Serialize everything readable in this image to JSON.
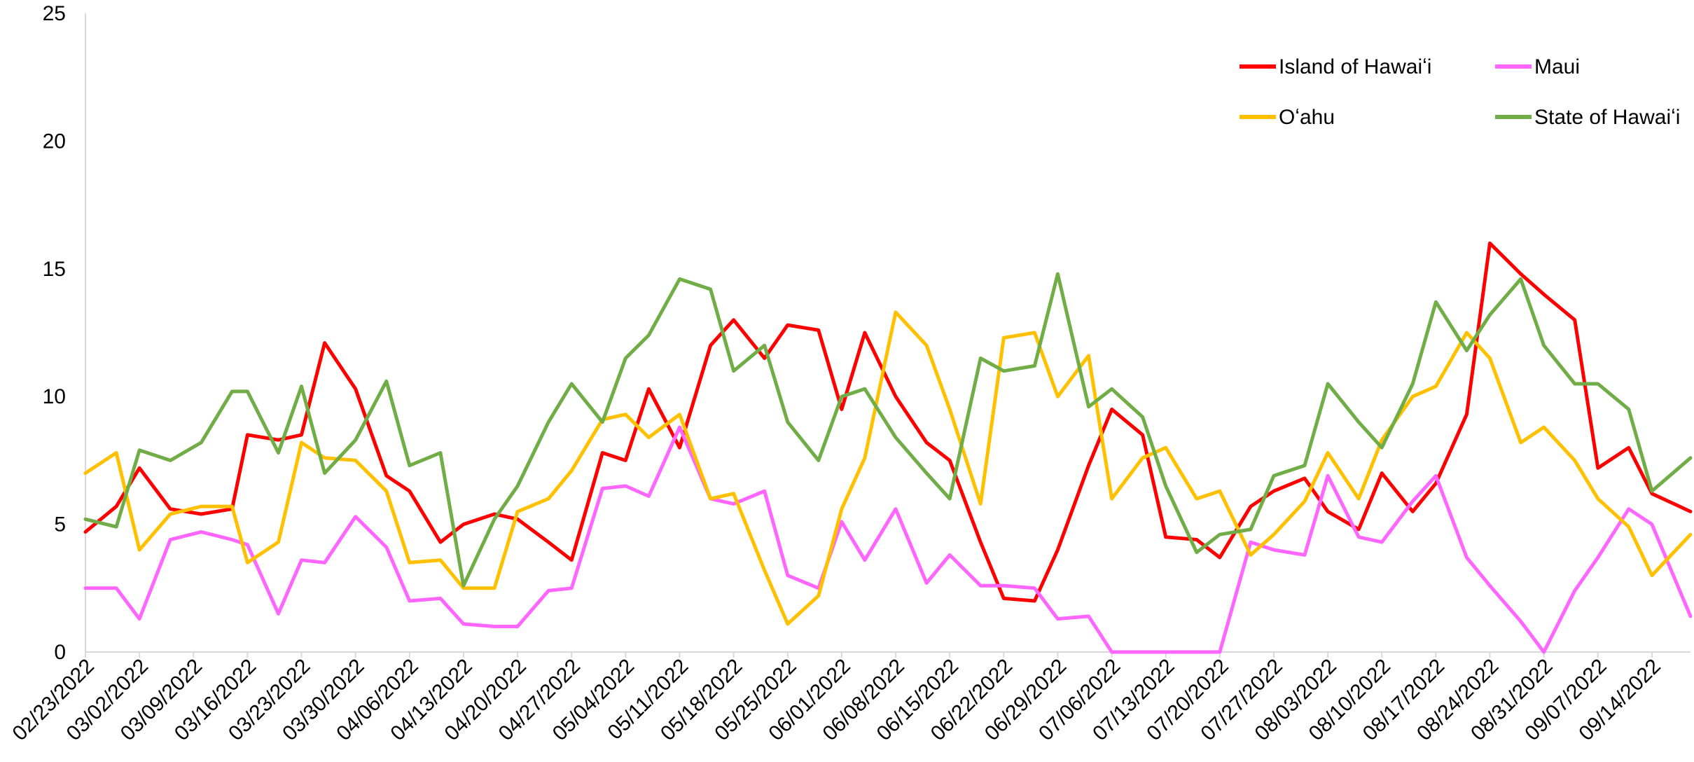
{
  "chart_data": {
    "type": "line",
    "title": "",
    "xlabel": "",
    "ylabel": "",
    "ylim": [
      0,
      25
    ],
    "yticks": [
      0,
      5,
      10,
      15,
      20,
      25
    ],
    "grid": false,
    "legend_placement": "top-right",
    "x_tick_labels": [
      "02/23/2022",
      "03/02/2022",
      "03/09/2022",
      "03/16/2022",
      "03/23/2022",
      "03/30/2022",
      "04/06/2022",
      "04/13/2022",
      "04/20/2022",
      "04/27/2022",
      "05/04/2022",
      "05/11/2022",
      "05/18/2022",
      "05/25/2022",
      "06/01/2022",
      "06/08/2022",
      "06/15/2022",
      "06/22/2022",
      "06/29/2022",
      "07/06/2022",
      "07/13/2022",
      "07/20/2022",
      "07/27/2022",
      "08/03/2022",
      "08/10/2022",
      "08/17/2022",
      "08/24/2022",
      "08/31/2022",
      "09/07/2022",
      "09/14/2022"
    ],
    "x_start": "02/23/2022",
    "x_end": "09/19/2022",
    "series": [
      {
        "name": "Island of Hawaiʻi",
        "color": "#ff0000",
        "x": [
          "02/23/2022",
          "02/27/2022",
          "03/02/2022",
          "03/06/2022",
          "03/10/2022",
          "03/14/2022",
          "03/16/2022",
          "03/20/2022",
          "03/23/2022",
          "03/26/2022",
          "03/30/2022",
          "04/03/2022",
          "04/06/2022",
          "04/10/2022",
          "04/13/2022",
          "04/17/2022",
          "04/20/2022",
          "04/24/2022",
          "04/27/2022",
          "05/01/2022",
          "05/04/2022",
          "05/07/2022",
          "05/11/2022",
          "05/15/2022",
          "05/18/2022",
          "05/22/2022",
          "05/25/2022",
          "05/29/2022",
          "06/01/2022",
          "06/04/2022",
          "06/08/2022",
          "06/12/2022",
          "06/15/2022",
          "06/19/2022",
          "06/22/2022",
          "06/26/2022",
          "06/29/2022",
          "07/03/2022",
          "07/06/2022",
          "07/10/2022",
          "07/13/2022",
          "07/17/2022",
          "07/20/2022",
          "07/24/2022",
          "07/27/2022",
          "07/31/2022",
          "08/03/2022",
          "08/07/2022",
          "08/10/2022",
          "08/14/2022",
          "08/17/2022",
          "08/21/2022",
          "08/24/2022",
          "08/28/2022",
          "08/31/2022",
          "09/04/2022",
          "09/07/2022",
          "09/11/2022",
          "09/14/2022",
          "09/19/2022"
        ],
        "values": [
          4.7,
          5.7,
          7.2,
          5.6,
          5.4,
          5.6,
          8.5,
          8.3,
          8.5,
          12.1,
          10.3,
          6.9,
          6.3,
          4.3,
          5.0,
          5.4,
          5.2,
          4.3,
          3.6,
          7.8,
          7.5,
          10.3,
          8.0,
          12.0,
          13.0,
          11.5,
          12.8,
          12.6,
          9.5,
          12.5,
          10.0,
          8.2,
          7.5,
          4.3,
          2.1,
          2.0,
          4.0,
          7.3,
          9.5,
          8.5,
          4.5,
          4.4,
          3.7,
          5.7,
          6.3,
          6.8,
          5.5,
          4.8,
          7.0,
          5.5,
          6.6,
          9.3,
          16.0,
          14.8,
          14.0,
          13.0,
          7.2,
          8.0,
          6.2,
          5.5
        ]
      },
      {
        "name": "Maui",
        "color": "#ff66ff",
        "x": [
          "02/23/2022",
          "02/27/2022",
          "03/02/2022",
          "03/06/2022",
          "03/10/2022",
          "03/14/2022",
          "03/16/2022",
          "03/20/2022",
          "03/23/2022",
          "03/26/2022",
          "03/30/2022",
          "04/03/2022",
          "04/06/2022",
          "04/10/2022",
          "04/13/2022",
          "04/17/2022",
          "04/20/2022",
          "04/24/2022",
          "04/27/2022",
          "05/01/2022",
          "05/04/2022",
          "05/07/2022",
          "05/11/2022",
          "05/15/2022",
          "05/18/2022",
          "05/22/2022",
          "05/25/2022",
          "05/29/2022",
          "06/01/2022",
          "06/04/2022",
          "06/08/2022",
          "06/12/2022",
          "06/15/2022",
          "06/19/2022",
          "06/22/2022",
          "06/26/2022",
          "06/29/2022",
          "07/03/2022",
          "07/06/2022",
          "07/10/2022",
          "07/13/2022",
          "07/17/2022",
          "07/20/2022",
          "07/24/2022",
          "07/27/2022",
          "07/31/2022",
          "08/03/2022",
          "08/07/2022",
          "08/10/2022",
          "08/14/2022",
          "08/17/2022",
          "08/21/2022",
          "08/24/2022",
          "08/28/2022",
          "08/31/2022",
          "09/04/2022",
          "09/07/2022",
          "09/11/2022",
          "09/14/2022",
          "09/19/2022"
        ],
        "values": [
          2.5,
          2.5,
          1.3,
          4.4,
          4.7,
          4.4,
          4.2,
          1.5,
          3.6,
          3.5,
          5.3,
          4.1,
          2.0,
          2.1,
          1.1,
          1.0,
          1.0,
          2.4,
          2.5,
          6.4,
          6.5,
          6.1,
          8.8,
          6.0,
          5.8,
          6.3,
          3.0,
          2.5,
          5.1,
          3.6,
          5.6,
          2.7,
          3.8,
          2.6,
          2.6,
          2.5,
          1.3,
          1.4,
          0.0,
          0.0,
          0.0,
          0.0,
          0.0,
          4.3,
          4.0,
          3.8,
          6.9,
          4.5,
          4.3,
          5.9,
          6.9,
          3.7,
          2.6,
          1.2,
          0.0,
          2.4,
          3.7,
          5.6,
          5.0,
          1.4
        ]
      },
      {
        "name": "Oʻahu",
        "color": "#ffc000",
        "x": [
          "02/23/2022",
          "02/27/2022",
          "03/02/2022",
          "03/06/2022",
          "03/10/2022",
          "03/14/2022",
          "03/16/2022",
          "03/20/2022",
          "03/23/2022",
          "03/26/2022",
          "03/30/2022",
          "04/03/2022",
          "04/06/2022",
          "04/10/2022",
          "04/13/2022",
          "04/17/2022",
          "04/20/2022",
          "04/24/2022",
          "04/27/2022",
          "05/01/2022",
          "05/04/2022",
          "05/07/2022",
          "05/11/2022",
          "05/15/2022",
          "05/18/2022",
          "05/22/2022",
          "05/25/2022",
          "05/29/2022",
          "06/01/2022",
          "06/04/2022",
          "06/08/2022",
          "06/12/2022",
          "06/15/2022",
          "06/19/2022",
          "06/22/2022",
          "06/26/2022",
          "06/29/2022",
          "07/03/2022",
          "07/06/2022",
          "07/10/2022",
          "07/13/2022",
          "07/17/2022",
          "07/20/2022",
          "07/24/2022",
          "07/27/2022",
          "07/31/2022",
          "08/03/2022",
          "08/07/2022",
          "08/10/2022",
          "08/14/2022",
          "08/17/2022",
          "08/21/2022",
          "08/24/2022",
          "08/28/2022",
          "08/31/2022",
          "09/04/2022",
          "09/07/2022",
          "09/11/2022",
          "09/14/2022",
          "09/19/2022"
        ],
        "values": [
          7.0,
          7.8,
          4.0,
          5.4,
          5.7,
          5.7,
          3.5,
          4.3,
          8.2,
          7.6,
          7.5,
          6.3,
          3.5,
          3.6,
          2.5,
          2.5,
          5.5,
          6.0,
          7.1,
          9.1,
          9.3,
          8.4,
          9.3,
          6.0,
          6.2,
          3.2,
          1.1,
          2.2,
          5.6,
          7.6,
          13.3,
          12.0,
          9.5,
          5.8,
          12.3,
          12.5,
          10.0,
          11.6,
          6.0,
          7.6,
          8.0,
          6.0,
          6.3,
          3.8,
          4.6,
          5.9,
          7.8,
          6.0,
          8.3,
          10.0,
          10.4,
          12.5,
          11.5,
          8.2,
          8.8,
          7.5,
          6.0,
          4.9,
          3.0,
          4.6
        ]
      },
      {
        "name": "State of Hawaiʻi",
        "color": "#70ad47",
        "x": [
          "02/23/2022",
          "02/27/2022",
          "03/02/2022",
          "03/06/2022",
          "03/10/2022",
          "03/14/2022",
          "03/16/2022",
          "03/20/2022",
          "03/23/2022",
          "03/26/2022",
          "03/30/2022",
          "04/03/2022",
          "04/06/2022",
          "04/10/2022",
          "04/13/2022",
          "04/17/2022",
          "04/20/2022",
          "04/24/2022",
          "04/27/2022",
          "05/01/2022",
          "05/04/2022",
          "05/07/2022",
          "05/11/2022",
          "05/15/2022",
          "05/18/2022",
          "05/22/2022",
          "05/25/2022",
          "05/29/2022",
          "06/01/2022",
          "06/04/2022",
          "06/08/2022",
          "06/12/2022",
          "06/15/2022",
          "06/19/2022",
          "06/22/2022",
          "06/26/2022",
          "06/29/2022",
          "07/03/2022",
          "07/06/2022",
          "07/10/2022",
          "07/13/2022",
          "07/17/2022",
          "07/20/2022",
          "07/24/2022",
          "07/27/2022",
          "07/31/2022",
          "08/03/2022",
          "08/07/2022",
          "08/10/2022",
          "08/14/2022",
          "08/17/2022",
          "08/21/2022",
          "08/24/2022",
          "08/28/2022",
          "08/31/2022",
          "09/04/2022",
          "09/07/2022",
          "09/11/2022",
          "09/14/2022",
          "09/19/2022"
        ],
        "values": [
          5.2,
          4.9,
          7.9,
          7.5,
          8.2,
          10.2,
          10.2,
          7.8,
          10.4,
          7.0,
          8.3,
          10.6,
          7.3,
          7.8,
          2.6,
          5.2,
          6.5,
          9.0,
          10.5,
          9.0,
          11.5,
          12.4,
          14.6,
          14.2,
          11.0,
          12.0,
          9.0,
          7.5,
          10.0,
          10.3,
          8.4,
          7.0,
          6.0,
          11.5,
          11.0,
          11.2,
          14.8,
          9.6,
          10.3,
          9.2,
          6.5,
          3.9,
          4.6,
          4.8,
          6.9,
          7.3,
          10.5,
          9.0,
          8.0,
          10.5,
          13.7,
          11.8,
          13.2,
          14.6,
          12.0,
          10.5,
          10.5,
          9.5,
          6.3,
          7.6
        ]
      }
    ]
  }
}
